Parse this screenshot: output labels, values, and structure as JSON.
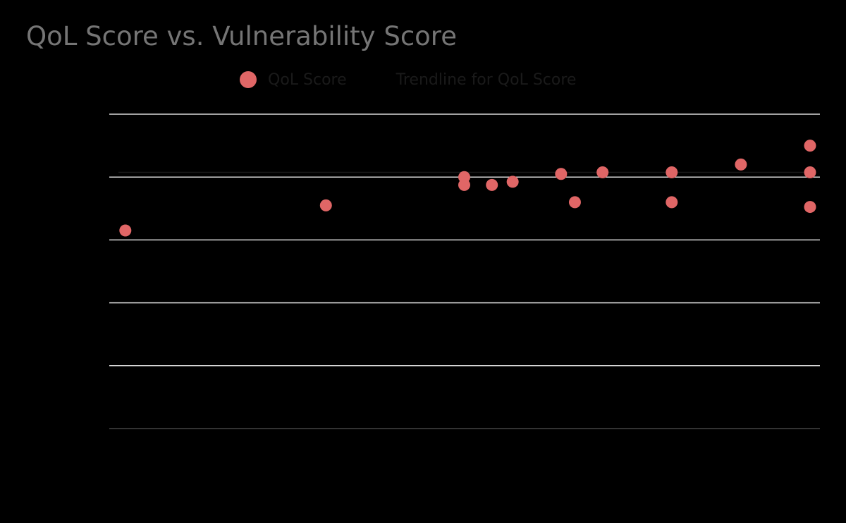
{
  "chart_data": {
    "type": "scatter",
    "title": "QoL Score vs. Vulnerability Score",
    "xlabel": "",
    "ylabel": "",
    "xlim": [
      0,
      100
    ],
    "ylim": [
      0,
      100
    ],
    "grid": true,
    "legend_position": "top-center",
    "series": [
      {
        "name": "QoL Score",
        "kind": "points",
        "color": "#e06666",
        "x": [
          1,
          30,
          50,
          50,
          54,
          57,
          64,
          66,
          70,
          80,
          80,
          90,
          100,
          100,
          100
        ],
        "y": [
          63,
          71,
          80,
          77.5,
          77.5,
          78.5,
          81,
          72,
          81.5,
          81.5,
          72,
          84,
          90,
          81.5,
          70.5
        ]
      },
      {
        "name": "Trendline for QoL Score",
        "kind": "trendline",
        "color": "#1a1a1a",
        "x": [
          0,
          100
        ],
        "y": [
          81.5,
          81.5
        ]
      }
    ]
  }
}
